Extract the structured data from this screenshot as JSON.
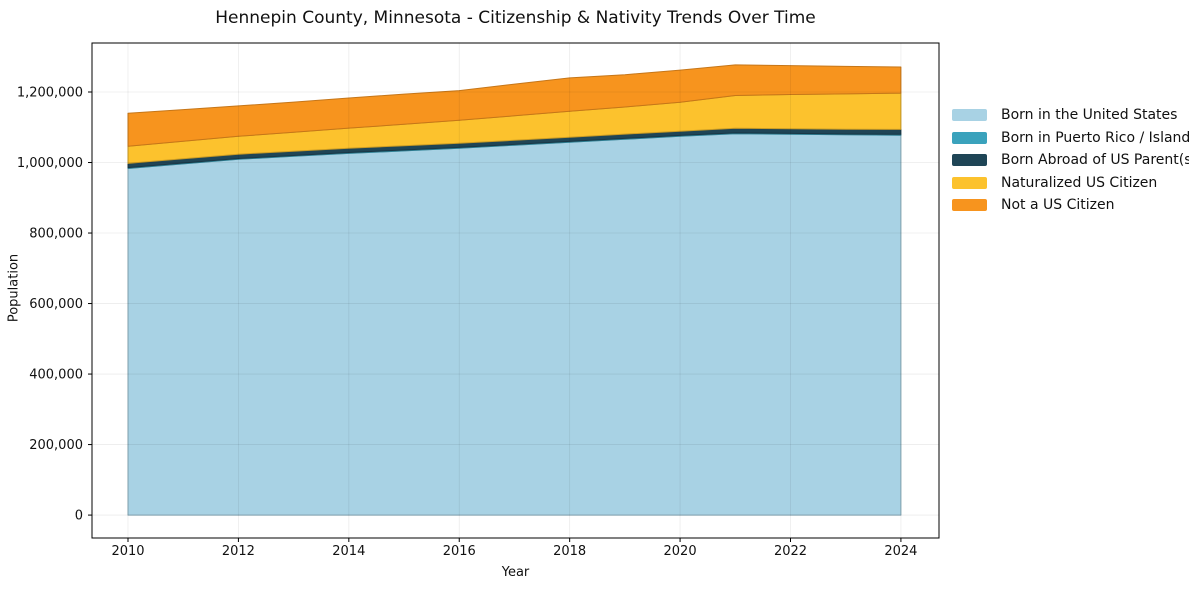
{
  "chart_data": {
    "type": "area",
    "stacked": true,
    "title": "Hennepin County, Minnesota - Citizenship & Nativity Trends Over Time",
    "xlabel": "Year",
    "ylabel": "Population",
    "x": [
      2010,
      2011,
      2012,
      2013,
      2014,
      2015,
      2016,
      2017,
      2018,
      2019,
      2020,
      2021,
      2022,
      2023,
      2024
    ],
    "series": [
      {
        "name": "Born in the United States",
        "color": "#a8d2e4",
        "values": [
          983000,
          996000,
          1009000,
          1017500,
          1026000,
          1033000,
          1040500,
          1049000,
          1057500,
          1066000,
          1074500,
          1081500,
          1080000,
          1078500,
          1077500
        ]
      },
      {
        "name": "Born in Puerto Rico / Islands",
        "color": "#3aa2bc",
        "values": [
          2500,
          2500,
          2500,
          2500,
          2500,
          2500,
          2500,
          2500,
          2500,
          2500,
          2500,
          2500,
          2500,
          2500,
          2500
        ]
      },
      {
        "name": "Born Abroad of US Parent(s)",
        "color": "#1f4556",
        "values": [
          12000,
          12000,
          12000,
          12000,
          12000,
          12000,
          11500,
          11500,
          11500,
          12000,
          11500,
          13000,
          13500,
          13500,
          14000
        ]
      },
      {
        "name": "Naturalized US Citizen",
        "color": "#fcc22d",
        "values": [
          48500,
          50000,
          51000,
          54000,
          57000,
          61000,
          65500,
          69500,
          74000,
          77000,
          82500,
          93000,
          97000,
          100000,
          103000
        ]
      },
      {
        "name": "Not a US Citizen",
        "color": "#f7941e",
        "values": [
          94000,
          89500,
          86000,
          85500,
          85500,
          85500,
          84000,
          90000,
          94500,
          91500,
          91000,
          87000,
          82000,
          78000,
          74000
        ]
      }
    ],
    "xticks": [
      2010,
      2012,
      2014,
      2016,
      2018,
      2020,
      2022,
      2024
    ],
    "yticks": [
      0,
      200000,
      400000,
      600000,
      800000,
      1000000,
      1200000
    ],
    "xlim": [
      2009.348,
      2024.69
    ],
    "ylim": [
      -65000,
      1339000
    ],
    "grid": true,
    "legend_position": "right"
  }
}
